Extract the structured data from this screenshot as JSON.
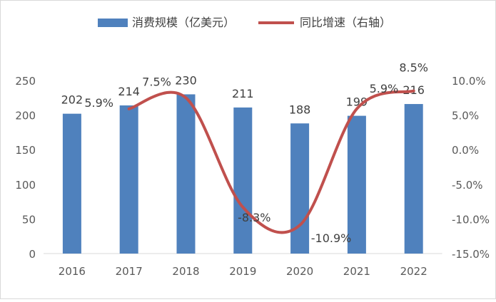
{
  "chart_data": {
    "type": "bar+line",
    "categories": [
      "2016",
      "2017",
      "2018",
      "2019",
      "2020",
      "2021",
      "2022"
    ],
    "series": [
      {
        "name": "消费规模（亿美元）",
        "type": "bar",
        "axis": "left",
        "color": "#4f81bd",
        "values": [
          202,
          214,
          230,
          211,
          188,
          199,
          216
        ],
        "labels": [
          "202",
          "214",
          "230",
          "211",
          "188",
          "199",
          "216"
        ]
      },
      {
        "name": "同比增速（右轴）",
        "type": "line",
        "axis": "right",
        "color": "#c0504d",
        "values": [
          null,
          5.9,
          7.5,
          -8.3,
          -10.9,
          5.9,
          8.5
        ],
        "labels": [
          null,
          "5.9%",
          "7.5%",
          "-8.3%",
          "-10.9%",
          "5.9%",
          "8.5%"
        ]
      }
    ],
    "left_axis": {
      "ylim": [
        0,
        250
      ],
      "ticks": [
        "0",
        "50",
        "100",
        "150",
        "200",
        "250"
      ]
    },
    "right_axis": {
      "ylim": [
        -15,
        10
      ],
      "ticks": [
        "-15.0%",
        "-10.0%",
        "-5.0%",
        "0.0%",
        "5.0%",
        "10.0%"
      ]
    },
    "grid": false,
    "legend": "top"
  }
}
